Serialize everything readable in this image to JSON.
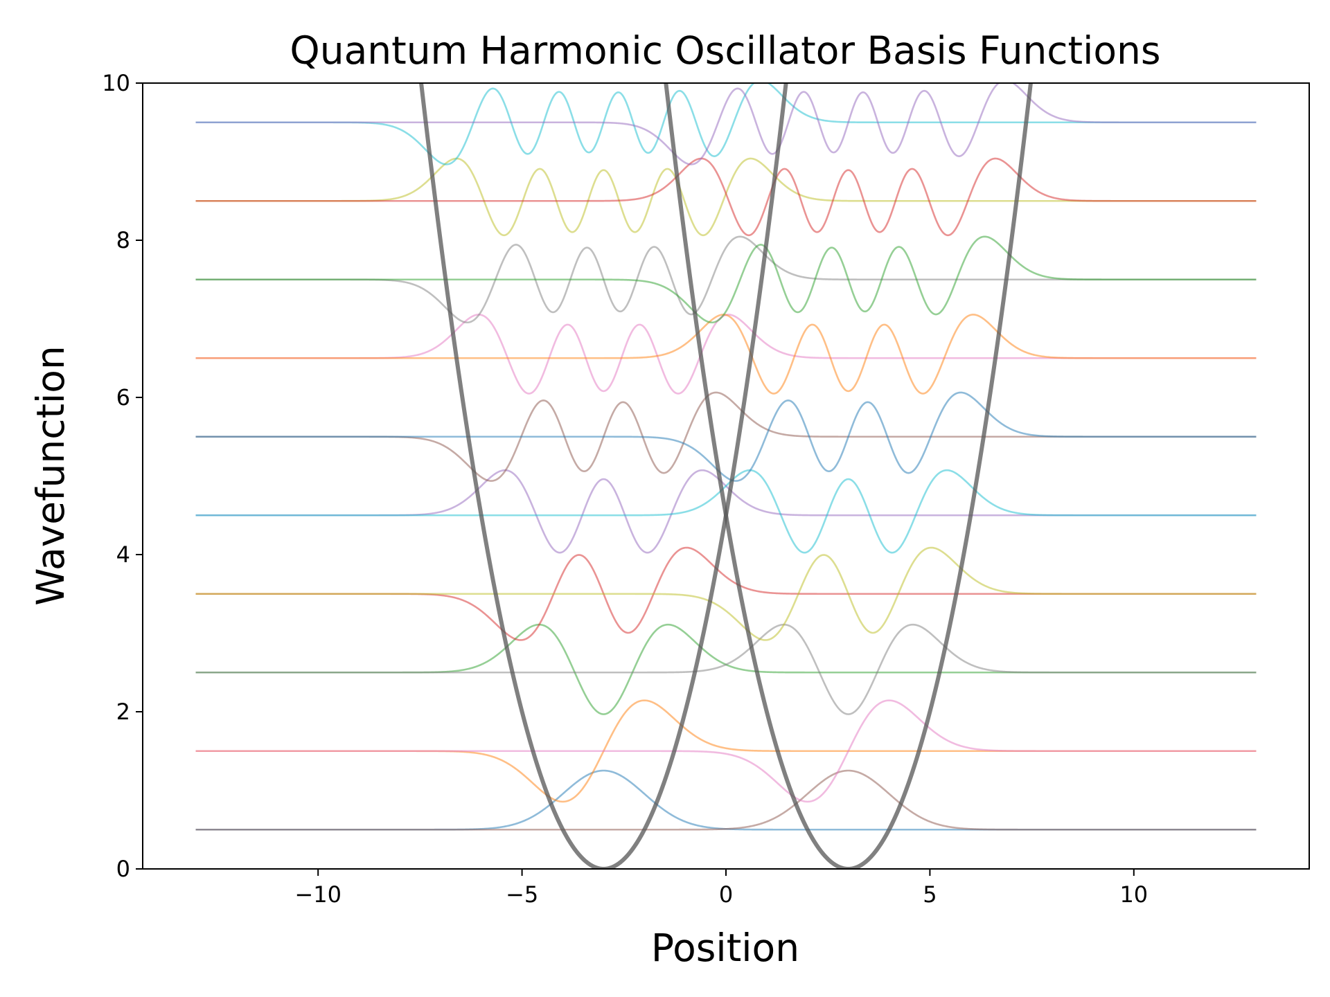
{
  "chart_data": {
    "type": "line",
    "title": "Quantum Harmonic Oscillator Basis Functions",
    "xlabel": "Position",
    "ylabel": "Wavefunction",
    "xlim": [
      -14.3,
      14.3
    ],
    "ylim": [
      0,
      10
    ],
    "x_range": [
      -13,
      13
    ],
    "x_ticks": [
      -10,
      -5,
      0,
      5,
      10
    ],
    "x_tick_labels": [
      "−10",
      "−5",
      "0",
      "5",
      "10"
    ],
    "y_ticks": [
      0,
      2,
      4,
      6,
      8,
      10
    ],
    "y_tick_labels": [
      "0",
      "2",
      "4",
      "6",
      "8",
      "10"
    ],
    "grid": false,
    "legend": "none",
    "wells": [
      {
        "center": -3,
        "potential": "0.5*(x+3)^2",
        "color": "#555555"
      },
      {
        "center": 3,
        "potential": "0.5*(x-3)^2",
        "color": "#555555"
      }
    ],
    "series": [
      {
        "well_center": -3,
        "n": 0,
        "energy": 0.5,
        "color": "#1f77b4"
      },
      {
        "well_center": -3,
        "n": 1,
        "energy": 1.5,
        "color": "#ff7f0e"
      },
      {
        "well_center": -3,
        "n": 2,
        "energy": 2.5,
        "color": "#2ca02c"
      },
      {
        "well_center": -3,
        "n": 3,
        "energy": 3.5,
        "color": "#d62728"
      },
      {
        "well_center": -3,
        "n": 4,
        "energy": 4.5,
        "color": "#9467bd"
      },
      {
        "well_center": -3,
        "n": 5,
        "energy": 5.5,
        "color": "#8c564b"
      },
      {
        "well_center": -3,
        "n": 6,
        "energy": 6.5,
        "color": "#e377c2"
      },
      {
        "well_center": -3,
        "n": 7,
        "energy": 7.5,
        "color": "#7f7f7f"
      },
      {
        "well_center": -3,
        "n": 8,
        "energy": 8.5,
        "color": "#bcbd22"
      },
      {
        "well_center": -3,
        "n": 9,
        "energy": 9.5,
        "color": "#17becf"
      },
      {
        "well_center": 3,
        "n": 0,
        "energy": 0.5,
        "color": "#8c564b"
      },
      {
        "well_center": 3,
        "n": 1,
        "energy": 1.5,
        "color": "#e377c2"
      },
      {
        "well_center": 3,
        "n": 2,
        "energy": 2.5,
        "color": "#7f7f7f"
      },
      {
        "well_center": 3,
        "n": 3,
        "energy": 3.5,
        "color": "#bcbd22"
      },
      {
        "well_center": 3,
        "n": 4,
        "energy": 4.5,
        "color": "#17becf"
      },
      {
        "well_center": 3,
        "n": 5,
        "energy": 5.5,
        "color": "#1f77b4"
      },
      {
        "well_center": 3,
        "n": 6,
        "energy": 6.5,
        "color": "#ff7f0e"
      },
      {
        "well_center": 3,
        "n": 7,
        "energy": 7.5,
        "color": "#2ca02c"
      },
      {
        "well_center": 3,
        "n": 8,
        "energy": 8.5,
        "color": "#d62728"
      },
      {
        "well_center": 3,
        "n": 9,
        "energy": 9.5,
        "color": "#9467bd"
      }
    ]
  }
}
